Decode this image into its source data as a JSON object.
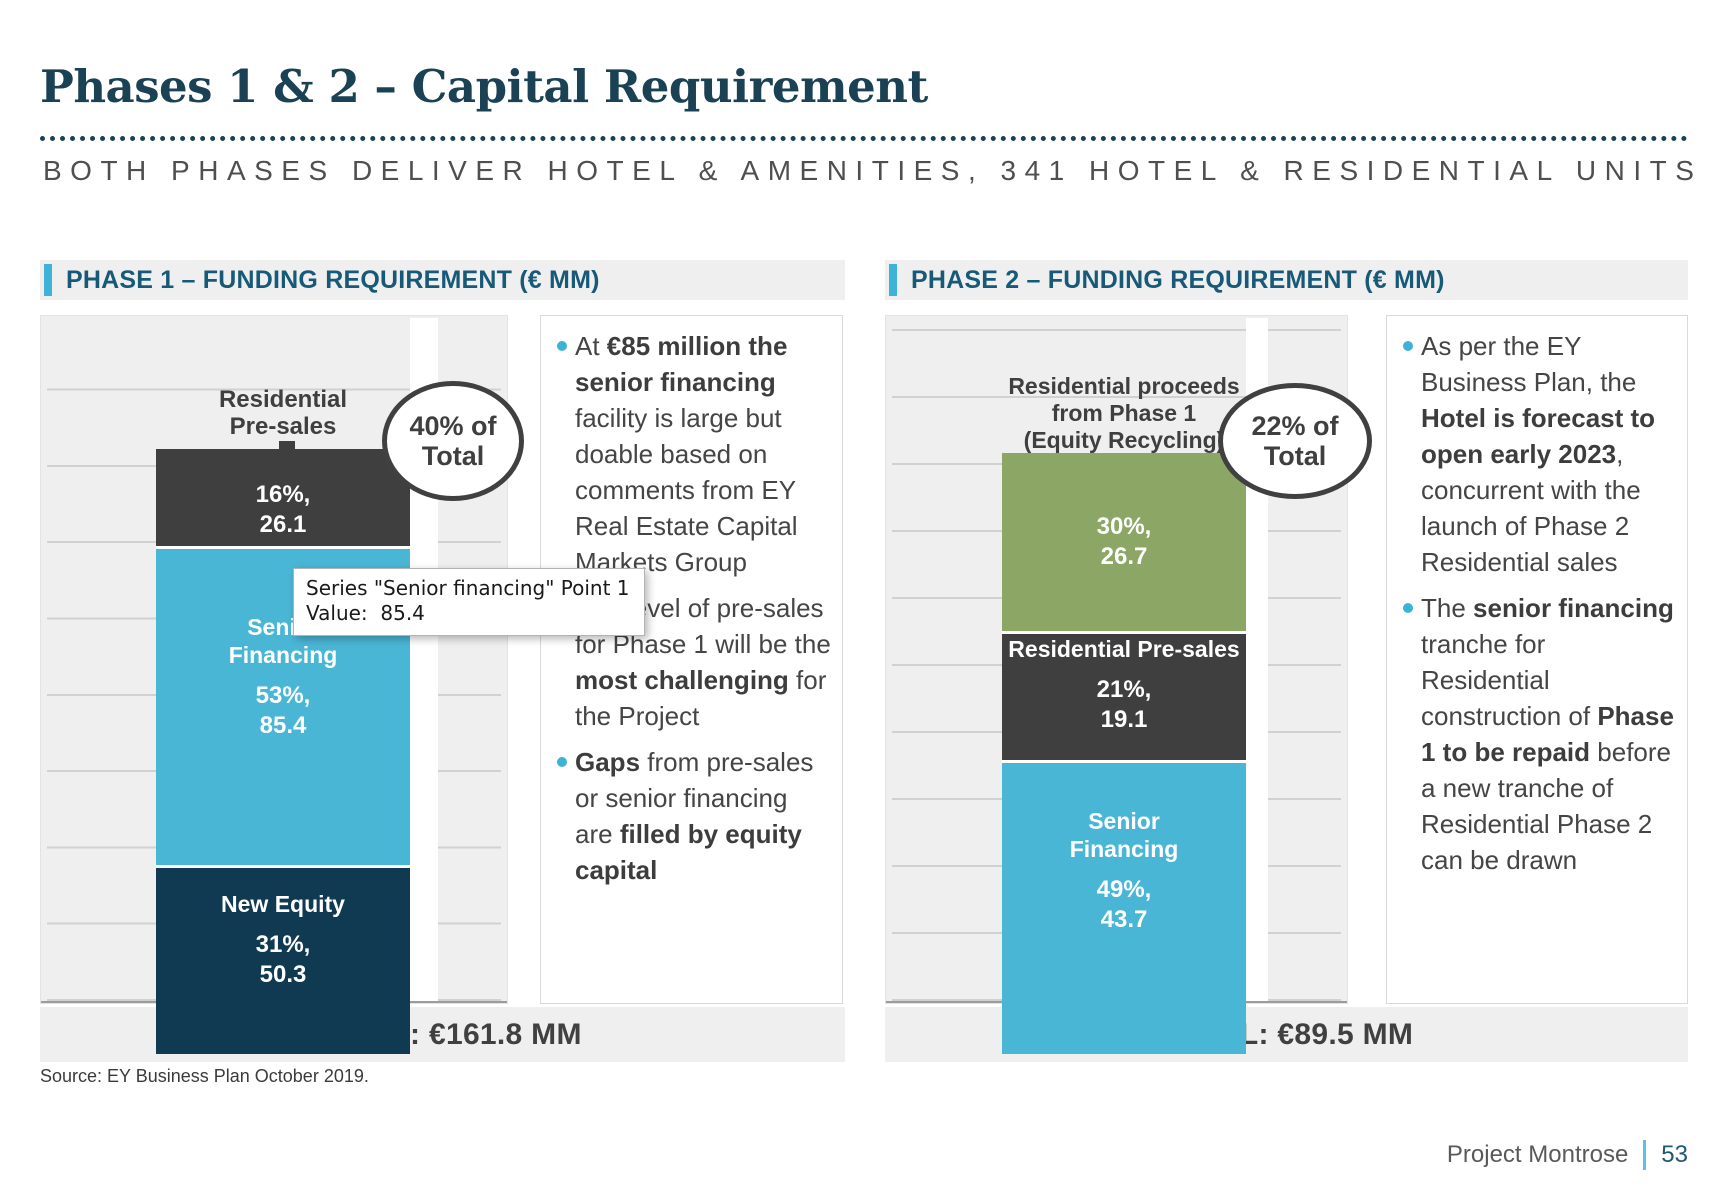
{
  "slide": {
    "title": "Phases 1 & 2 – Capital Requirement",
    "subtitle": "BOTH PHASES DELIVER HOTEL & AMENITIES, 341 HOTEL & RESIDENTIAL UNITS",
    "source": "Source: EY Business Plan October 2019.",
    "footer": {
      "project": "Project Montrose",
      "page": "53"
    }
  },
  "colors": {
    "title_navy": "#1a4254",
    "header_blue": "#175a78",
    "accent_cyan": "#3fb3d6",
    "bar_dark_gray": "#3f3f3f",
    "bar_cyan": "#4ab6d6",
    "bar_navy": "#0f3a52",
    "bar_green": "#8ca765",
    "panel_gray": "#f0efef"
  },
  "tooltip": {
    "line1": "Series \"Senior financing\" Point 1",
    "line2": "Value:  85.4"
  },
  "phase1": {
    "header": "PHASE 1 – FUNDING REQUIREMENT (€ MM)",
    "category_label": {
      "line1": "Residential",
      "line2": "Pre-sales"
    },
    "badge": {
      "line1": "40% of",
      "line2": "Total"
    },
    "total": "TOTAL : €161.8 MM",
    "segments": [
      {
        "id": "residential-pre-sales",
        "name_lines": [],
        "pct_label": "16%,",
        "value_label": "26.1",
        "value": 26.1,
        "color": "#3f3f3f"
      },
      {
        "id": "senior-financing",
        "name_lines": [
          "Senior",
          "Financing"
        ],
        "pct_label": "53%,",
        "value_label": "85.4",
        "value": 85.4,
        "color": "#4ab6d6"
      },
      {
        "id": "new-equity",
        "name_lines": [
          "New Equity"
        ],
        "pct_label": "31%,",
        "value_label": "50.3",
        "value": 50.3,
        "color": "#0f3a52"
      }
    ],
    "bullets": [
      {
        "runs": [
          {
            "t": "At ",
            "b": false
          },
          {
            "t": "€85 million the senior financing",
            "b": true
          },
          {
            "t": " facility is large but doable based on comments from EY Real Estate Capital Markets Group",
            "b": false
          }
        ]
      },
      {
        "runs": [
          {
            "t": "The level of pre-sales for Phase 1 will be the ",
            "b": false
          },
          {
            "t": "most challenging",
            "b": true
          },
          {
            "t": " for the Project",
            "b": false
          }
        ]
      },
      {
        "runs": [
          {
            "t": "Gaps",
            "b": true
          },
          {
            "t": " from pre-sales or senior financing are ",
            "b": false
          },
          {
            "t": "filled by equity capital",
            "b": true
          }
        ]
      }
    ]
  },
  "phase2": {
    "header": "PHASE 2 – FUNDING REQUIREMENT (€ MM)",
    "category_label": {
      "line1": "Residential proceeds",
      "line2": "from Phase 1",
      "line3": "(Equity Recycling)"
    },
    "badge": {
      "line1": "22% of",
      "line2": "Total"
    },
    "total": "TOTAL: €89.5 MM",
    "segments": [
      {
        "id": "residential-proceeds-equity-recycling",
        "name_lines": [],
        "pct_label": "30%,",
        "value_label": "26.7",
        "value": 26.7,
        "color": "#8ca765"
      },
      {
        "id": "residential-pre-sales",
        "name_lines": [
          "Residential Pre-sales"
        ],
        "pct_label": "21%,",
        "value_label": "19.1",
        "value": 19.1,
        "color": "#3f3f3f"
      },
      {
        "id": "senior-financing",
        "name_lines": [
          "Senior",
          "Financing"
        ],
        "pct_label": "49%,",
        "value_label": "43.7",
        "value": 43.7,
        "color": "#4ab6d6"
      }
    ],
    "bullets": [
      {
        "runs": [
          {
            "t": "As per the EY Business Plan, the ",
            "b": false
          },
          {
            "t": "Hotel is forecast to open early 2023",
            "b": true
          },
          {
            "t": ", concurrent with the launch of Phase 2 Residential sales",
            "b": false
          }
        ]
      },
      {
        "runs": [
          {
            "t": "The ",
            "b": false
          },
          {
            "t": "senior financing",
            "b": true
          },
          {
            "t": " tranche for Residential construction of ",
            "b": false
          },
          {
            "t": "Phase 1 to be repaid",
            "b": true
          },
          {
            "t": " before a new tranche of Residential Phase 2 can be drawn",
            "b": false
          }
        ]
      }
    ]
  },
  "chart_data": [
    {
      "type": "bar",
      "subtype": "stacked-column",
      "title": "PHASE 1 – FUNDING REQUIREMENT (€ MM)",
      "categories": [
        "Residential Pre-sales"
      ],
      "series": [
        {
          "name": "Residential Pre-sales",
          "values": [
            26.1
          ],
          "pct": "16%",
          "color": "#3f3f3f"
        },
        {
          "name": "Senior financing",
          "values": [
            85.4
          ],
          "pct": "53%",
          "color": "#4ab6d6"
        },
        {
          "name": "New Equity",
          "values": [
            50.3
          ],
          "pct": "31%",
          "color": "#0f3a52"
        }
      ],
      "total": 161.8,
      "total_label": "TOTAL : €161.8 MM",
      "annotation": "40% of Total",
      "ylim": [
        0,
        180
      ],
      "gridlines": true,
      "legend": false
    },
    {
      "type": "bar",
      "subtype": "stacked-column",
      "title": "PHASE 2 – FUNDING REQUIREMENT (€ MM)",
      "categories": [
        "Residential proceeds from Phase 1 (Equity Recycling)"
      ],
      "series": [
        {
          "name": "Residential proceeds from Phase 1 (Equity Recycling)",
          "values": [
            26.7
          ],
          "pct": "30%",
          "color": "#8ca765"
        },
        {
          "name": "Residential Pre-sales",
          "values": [
            19.1
          ],
          "pct": "21%",
          "color": "#3f3f3f"
        },
        {
          "name": "Senior Financing",
          "values": [
            43.7
          ],
          "pct": "49%",
          "color": "#4ab6d6"
        }
      ],
      "total": 89.5,
      "total_label": "TOTAL: €89.5 MM",
      "annotation": "22% of Total",
      "ylim": [
        0,
        100
      ],
      "gridlines": true,
      "legend": false
    }
  ]
}
